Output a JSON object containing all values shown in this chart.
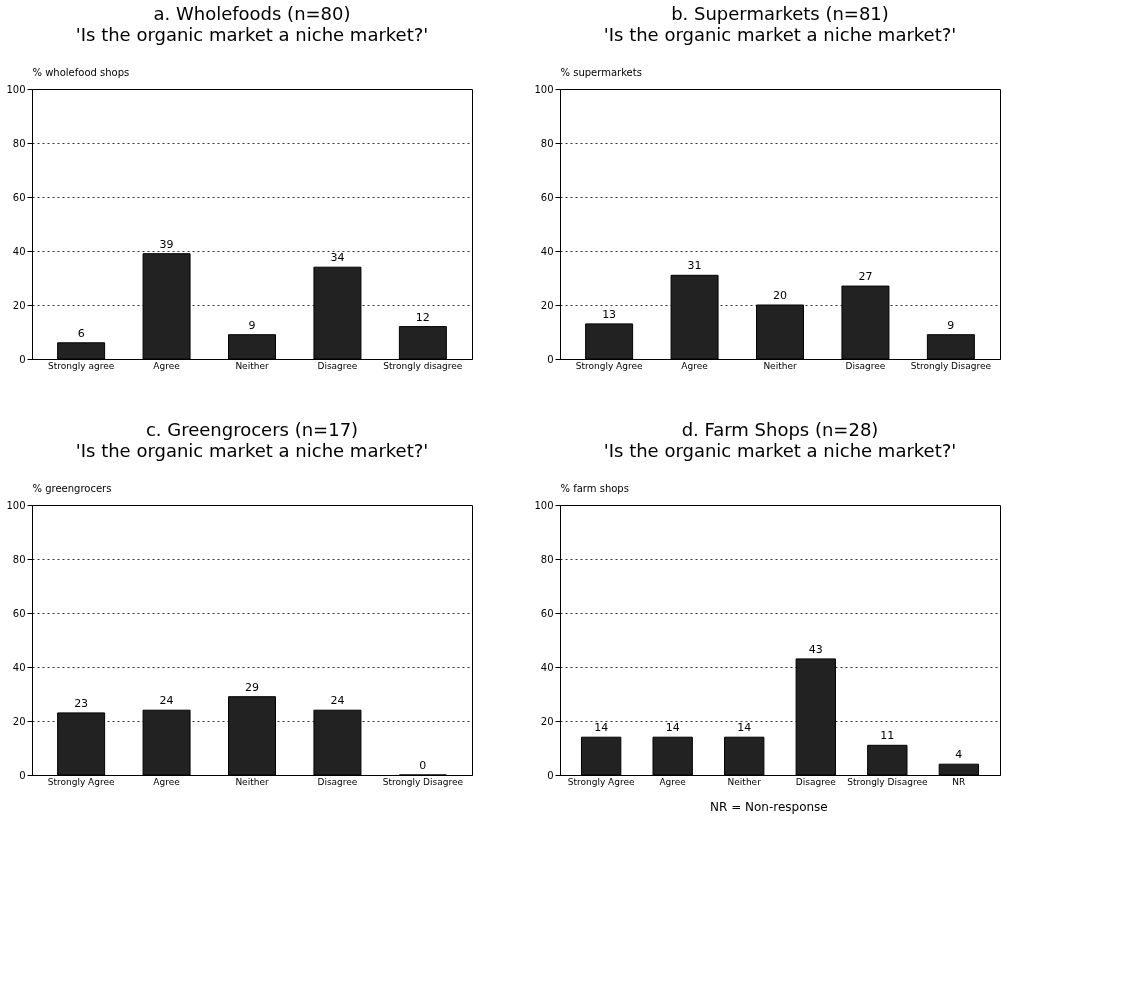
{
  "chart_data": [
    {
      "type": "bar",
      "title": "a. Wholefoods (n=80)",
      "subtitle": "'Is the organic market a niche market?'",
      "ylabel": "% wholefood shops",
      "categories": [
        "Strongly agree",
        "Agree",
        "Neither",
        "Disagree",
        "Strongly disagree"
      ],
      "values": [
        6,
        39,
        9,
        34,
        12
      ],
      "color": "#222222",
      "ylim": [
        0,
        100
      ],
      "yticks": [
        0,
        20,
        40,
        60,
        80,
        100
      ],
      "grid": "y",
      "data_labels": true
    },
    {
      "type": "bar",
      "title": "b. Supermarkets (n=81)",
      "subtitle": "'Is the organic market a niche market?'",
      "ylabel": "% supermarkets",
      "categories": [
        "Strongly Agree",
        "Agree",
        "Neither",
        "Disagree",
        "Strongly Disagree"
      ],
      "values": [
        13,
        31,
        20,
        27,
        9
      ],
      "color": "#222222",
      "ylim": [
        0,
        100
      ],
      "yticks": [
        0,
        20,
        40,
        60,
        80,
        100
      ],
      "grid": "y",
      "data_labels": true
    },
    {
      "type": "bar",
      "title": "c. Greengrocers (n=17)",
      "subtitle": "'Is the organic market a niche market?'",
      "ylabel": "% greengrocers",
      "categories": [
        "Strongly Agree",
        "Agree",
        "Neither",
        "Disagree",
        "Strongly Disagree"
      ],
      "values": [
        23,
        24,
        29,
        24,
        0
      ],
      "color": "#222222",
      "ylim": [
        0,
        100
      ],
      "yticks": [
        0,
        20,
        40,
        60,
        80,
        100
      ],
      "grid": "y",
      "data_labels": true
    },
    {
      "type": "bar",
      "title": "d. Farm Shops (n=28)",
      "subtitle": "'Is the organic market a niche market?'",
      "ylabel": "% farm shops",
      "categories": [
        "Strongly Agree",
        "Agree",
        "Neither",
        "Disagree",
        "Strongly Disagree",
        "NR"
      ],
      "values": [
        14,
        14,
        14,
        43,
        11,
        4
      ],
      "color": "#222222",
      "ylim": [
        0,
        100
      ],
      "yticks": [
        0,
        20,
        40,
        60,
        80,
        100
      ],
      "grid": "y",
      "data_labels": true,
      "annotations": [
        "NR = Non-response"
      ]
    }
  ]
}
